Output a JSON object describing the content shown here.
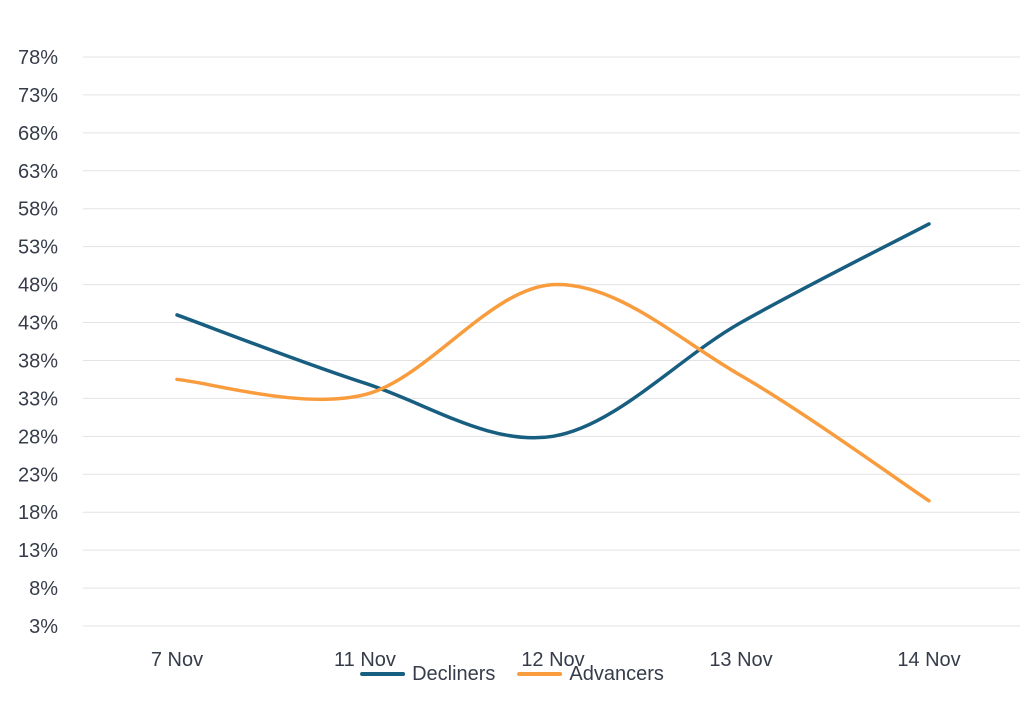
{
  "chart_data": {
    "type": "line",
    "x": [
      "7 Nov",
      "11 Nov",
      "12 Nov",
      "13 Nov",
      "14 Nov"
    ],
    "series": [
      {
        "name": "Decliners",
        "color": "#185E80",
        "values": [
          44,
          35,
          28,
          43,
          56
        ]
      },
      {
        "name": "Advancers",
        "color": "#F89C3E",
        "values": [
          35.5,
          33.5,
          48,
          36,
          19.5
        ]
      }
    ],
    "title": "",
    "xlabel": "",
    "ylabel": "",
    "y_axis": {
      "min": 3,
      "max": 78,
      "step": 5,
      "suffix": "%",
      "tick_labels": [
        "78%",
        "73%",
        "68%",
        "63%",
        "58%",
        "53%",
        "48%",
        "43%",
        "38%",
        "33%",
        "28%",
        "23%",
        "18%",
        "13%",
        "8%",
        "3%"
      ]
    },
    "grid": "horizontal-only",
    "line_style": "smooth",
    "legend_position": "bottom-center",
    "colors": {
      "text": "#373C4A",
      "gridline": "#E3E3E5",
      "background": "#FFFFFF"
    }
  },
  "legend": {
    "decliners_label": "Decliners",
    "advancers_label": "Advancers"
  }
}
